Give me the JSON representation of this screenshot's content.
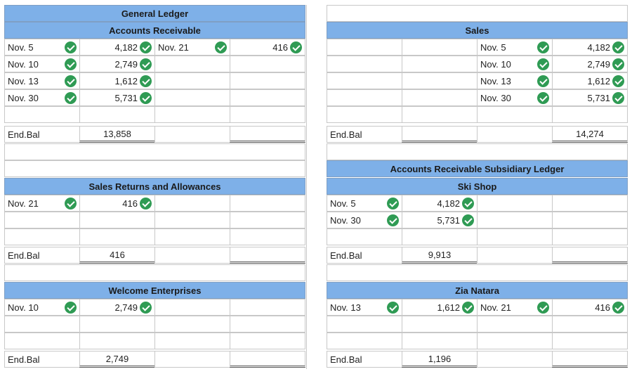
{
  "colors": {
    "header_bg": "#7eb0e8",
    "check_green": "#2f9b54"
  },
  "check_icon": "check-circle-icon",
  "general_ledger_title": "General Ledger",
  "accounts_receivable": {
    "title": "Accounts Receivable",
    "debits": [
      {
        "date": "Nov. 5",
        "amount": "4,182"
      },
      {
        "date": "Nov. 10",
        "amount": "2,749"
      },
      {
        "date": "Nov. 13",
        "amount": "1,612"
      },
      {
        "date": "Nov. 30",
        "amount": "5,731"
      }
    ],
    "credits": [
      {
        "date": "Nov. 21",
        "amount": "416"
      }
    ],
    "end_label": "End.Bal",
    "end_balance": "13,858"
  },
  "sales": {
    "title": "Sales",
    "credits": [
      {
        "date": "Nov. 5",
        "amount": "4,182"
      },
      {
        "date": "Nov. 10",
        "amount": "2,749"
      },
      {
        "date": "Nov. 13",
        "amount": "1,612"
      },
      {
        "date": "Nov. 30",
        "amount": "5,731"
      }
    ],
    "end_label": "End.Bal",
    "end_balance": "14,274"
  },
  "sales_returns": {
    "title": "Sales Returns and Allowances",
    "debits": [
      {
        "date": "Nov. 21",
        "amount": "416"
      }
    ],
    "end_label": "End.Bal",
    "end_balance": "416"
  },
  "subsidiary_ledger_title": "Accounts Receivable Subsidiary Ledger",
  "ski_shop": {
    "title": "Ski Shop",
    "debits": [
      {
        "date": "Nov. 5",
        "amount": "4,182"
      },
      {
        "date": "Nov. 30",
        "amount": "5,731"
      }
    ],
    "end_label": "End.Bal",
    "end_balance": "9,913"
  },
  "welcome_enterprises": {
    "title": "Welcome Enterprises",
    "debits": [
      {
        "date": "Nov. 10",
        "amount": "2,749"
      }
    ],
    "end_label": "End.Bal",
    "end_balance": "2,749"
  },
  "zia_natara": {
    "title": "Zia Natara",
    "debits": [
      {
        "date": "Nov. 13",
        "amount": "1,612"
      }
    ],
    "credits": [
      {
        "date": "Nov. 21",
        "amount": "416"
      }
    ],
    "end_label": "End.Bal",
    "end_balance": "1,196"
  }
}
